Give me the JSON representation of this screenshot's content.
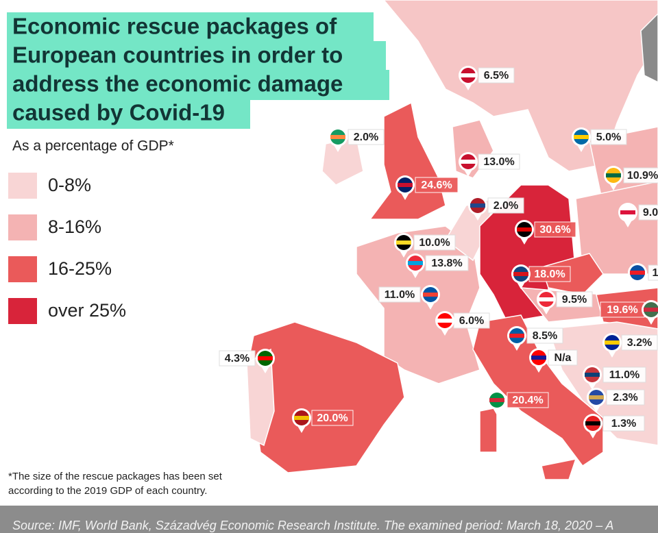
{
  "title": {
    "lines": [
      "Economic rescue packages of",
      "European countries in order to",
      "address the economic damage",
      "caused by Covid-19"
    ]
  },
  "subtitle": "As a percentage of GDP*",
  "legend": [
    {
      "label": "0-8%",
      "color": "#f8d5d5"
    },
    {
      "label": "8-16%",
      "color": "#f4b3b3"
    },
    {
      "label": "16-25%",
      "color": "#ea5a5a"
    },
    {
      "label": "over 25%",
      "color": "#d8243a"
    }
  ],
  "countries": [
    {
      "label": "6.5%"
    },
    {
      "label": "2.0%"
    },
    {
      "label": "5.0%"
    },
    {
      "label": "13.0%"
    },
    {
      "label": "10.9%"
    },
    {
      "label": "24.6%"
    },
    {
      "label": "2.0%"
    },
    {
      "label": "9.0"
    },
    {
      "label": "30.6%"
    },
    {
      "label": "10.0%"
    },
    {
      "label": "13.8%"
    },
    {
      "label": "18.0%"
    },
    {
      "label": "1"
    },
    {
      "label": "11.0%"
    },
    {
      "label": "9.5%"
    },
    {
      "label": "19.6%"
    },
    {
      "label": "6.0%"
    },
    {
      "label": "8.5%"
    },
    {
      "label": "3.2%"
    },
    {
      "label": "4.3%"
    },
    {
      "label": "N/a"
    },
    {
      "label": "11.0%"
    },
    {
      "label": "2.3%"
    },
    {
      "label": "20.4%"
    },
    {
      "label": "1.3%"
    },
    {
      "label": "20.0%"
    }
  ],
  "footnote": {
    "lines": [
      "*The size of the rescue packages has been set",
      "according to the 2019 GDP of each country."
    ]
  },
  "source": "Source: IMF, World Bank, Századvég Economic Research Institute. The examined period: March 18, 2020 – A"
}
